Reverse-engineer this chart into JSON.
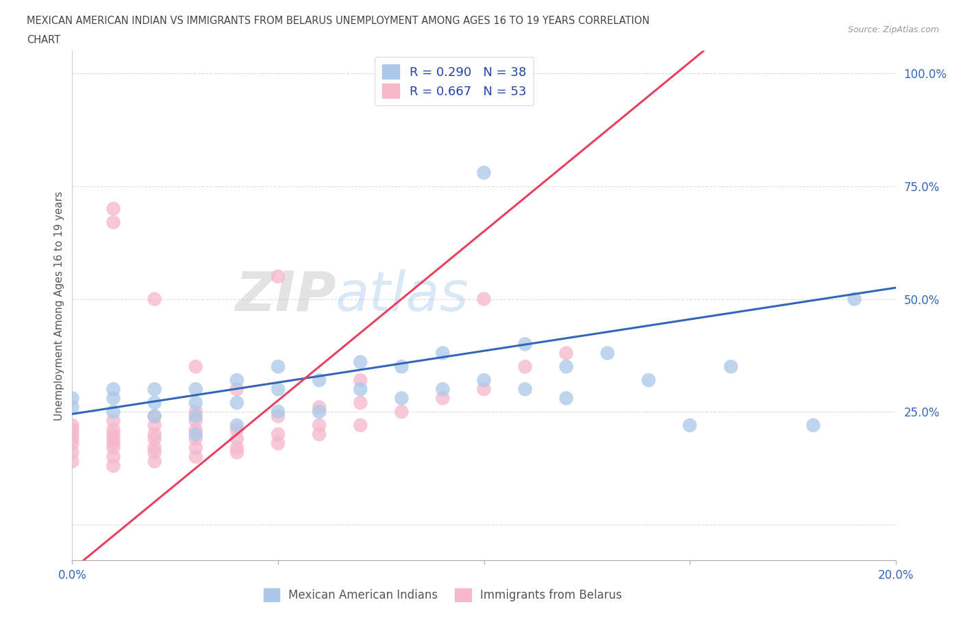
{
  "title_line1": "MEXICAN AMERICAN INDIAN VS IMMIGRANTS FROM BELARUS UNEMPLOYMENT AMONG AGES 16 TO 19 YEARS CORRELATION",
  "title_line2": "CHART",
  "source_text": "Source: ZipAtlas.com",
  "ylabel": "Unemployment Among Ages 16 to 19 years",
  "blue_R": 0.29,
  "blue_N": 38,
  "pink_R": 0.667,
  "pink_N": 53,
  "blue_label": "Mexican American Indians",
  "pink_label": "Immigrants from Belarus",
  "xlim": [
    0.0,
    0.2
  ],
  "ylim": [
    -0.08,
    1.05
  ],
  "ytick_vals": [
    0.0,
    0.25,
    0.5,
    0.75,
    1.0
  ],
  "ytick_labels": [
    "",
    "25.0%",
    "50.0%",
    "75.0%",
    "100.0%"
  ],
  "xtick_vals": [
    0.0,
    0.05,
    0.1,
    0.15,
    0.2
  ],
  "xtick_labels": [
    "0.0%",
    "",
    "",
    "",
    "20.0%"
  ],
  "blue_scatter_x": [
    0.0,
    0.0,
    0.01,
    0.01,
    0.01,
    0.02,
    0.02,
    0.02,
    0.03,
    0.03,
    0.03,
    0.03,
    0.04,
    0.04,
    0.04,
    0.05,
    0.05,
    0.05,
    0.06,
    0.06,
    0.07,
    0.07,
    0.08,
    0.08,
    0.09,
    0.09,
    0.1,
    0.1,
    0.11,
    0.11,
    0.12,
    0.12,
    0.13,
    0.14,
    0.15,
    0.16,
    0.18,
    0.19
  ],
  "blue_scatter_y": [
    0.26,
    0.28,
    0.25,
    0.28,
    0.3,
    0.24,
    0.27,
    0.3,
    0.2,
    0.24,
    0.27,
    0.3,
    0.22,
    0.27,
    0.32,
    0.25,
    0.3,
    0.35,
    0.25,
    0.32,
    0.3,
    0.36,
    0.28,
    0.35,
    0.3,
    0.38,
    0.32,
    0.78,
    0.3,
    0.4,
    0.28,
    0.35,
    0.38,
    0.32,
    0.22,
    0.35,
    0.22,
    0.5
  ],
  "pink_scatter_x": [
    0.0,
    0.0,
    0.0,
    0.0,
    0.0,
    0.0,
    0.0,
    0.01,
    0.01,
    0.01,
    0.01,
    0.01,
    0.01,
    0.01,
    0.01,
    0.01,
    0.01,
    0.02,
    0.02,
    0.02,
    0.02,
    0.02,
    0.02,
    0.02,
    0.02,
    0.03,
    0.03,
    0.03,
    0.03,
    0.03,
    0.03,
    0.03,
    0.04,
    0.04,
    0.04,
    0.04,
    0.04,
    0.05,
    0.05,
    0.05,
    0.05,
    0.06,
    0.06,
    0.06,
    0.07,
    0.07,
    0.07,
    0.08,
    0.09,
    0.1,
    0.1,
    0.11,
    0.12
  ],
  "pink_scatter_y": [
    0.14,
    0.16,
    0.18,
    0.19,
    0.2,
    0.21,
    0.22,
    0.13,
    0.15,
    0.17,
    0.18,
    0.19,
    0.2,
    0.21,
    0.23,
    0.67,
    0.7,
    0.14,
    0.16,
    0.17,
    0.19,
    0.2,
    0.22,
    0.24,
    0.5,
    0.15,
    0.17,
    0.19,
    0.21,
    0.23,
    0.25,
    0.35,
    0.16,
    0.17,
    0.19,
    0.21,
    0.3,
    0.18,
    0.2,
    0.24,
    0.55,
    0.2,
    0.22,
    0.26,
    0.22,
    0.27,
    0.32,
    0.25,
    0.28,
    0.3,
    0.5,
    0.35,
    0.38
  ],
  "blue_color": "#aac8e8",
  "pink_color": "#f5b8cb",
  "blue_line_color": "#3366bb",
  "pink_line_color": "#e84060",
  "pink_line_slope": 7.5,
  "pink_line_intercept": -0.1,
  "blue_line_slope": 1.4,
  "blue_line_intercept": 0.245,
  "watermark_zip": "ZIP",
  "watermark_atlas": "atlas",
  "background_color": "#ffffff",
  "grid_color": "#cccccc"
}
